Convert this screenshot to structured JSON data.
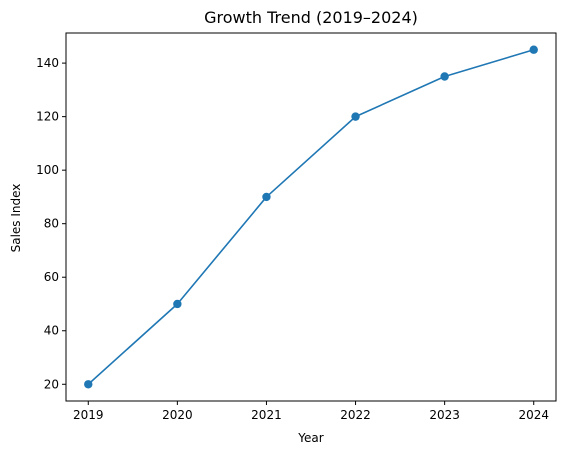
{
  "chart_data": {
    "type": "line",
    "title": "Growth Trend (2019–2024)",
    "xlabel": "Year",
    "ylabel": "Sales Index",
    "x": [
      2019,
      2020,
      2021,
      2022,
      2023,
      2024
    ],
    "x_tick_labels": [
      "2019",
      "2020",
      "2021",
      "2022",
      "2023",
      "2024"
    ],
    "y_ticks": [
      20,
      40,
      60,
      80,
      100,
      120,
      140
    ],
    "y_tick_labels": [
      "20",
      "40",
      "60",
      "80",
      "100",
      "120",
      "140"
    ],
    "series": [
      {
        "values": [
          20,
          50,
          90,
          120,
          135,
          145
        ],
        "color": "#1f77b4",
        "marker": "circle"
      }
    ],
    "xlim": [
      2018.75,
      2024.25
    ],
    "ylim": [
      13.75,
      151.25
    ],
    "grid": false,
    "legend": false
  }
}
